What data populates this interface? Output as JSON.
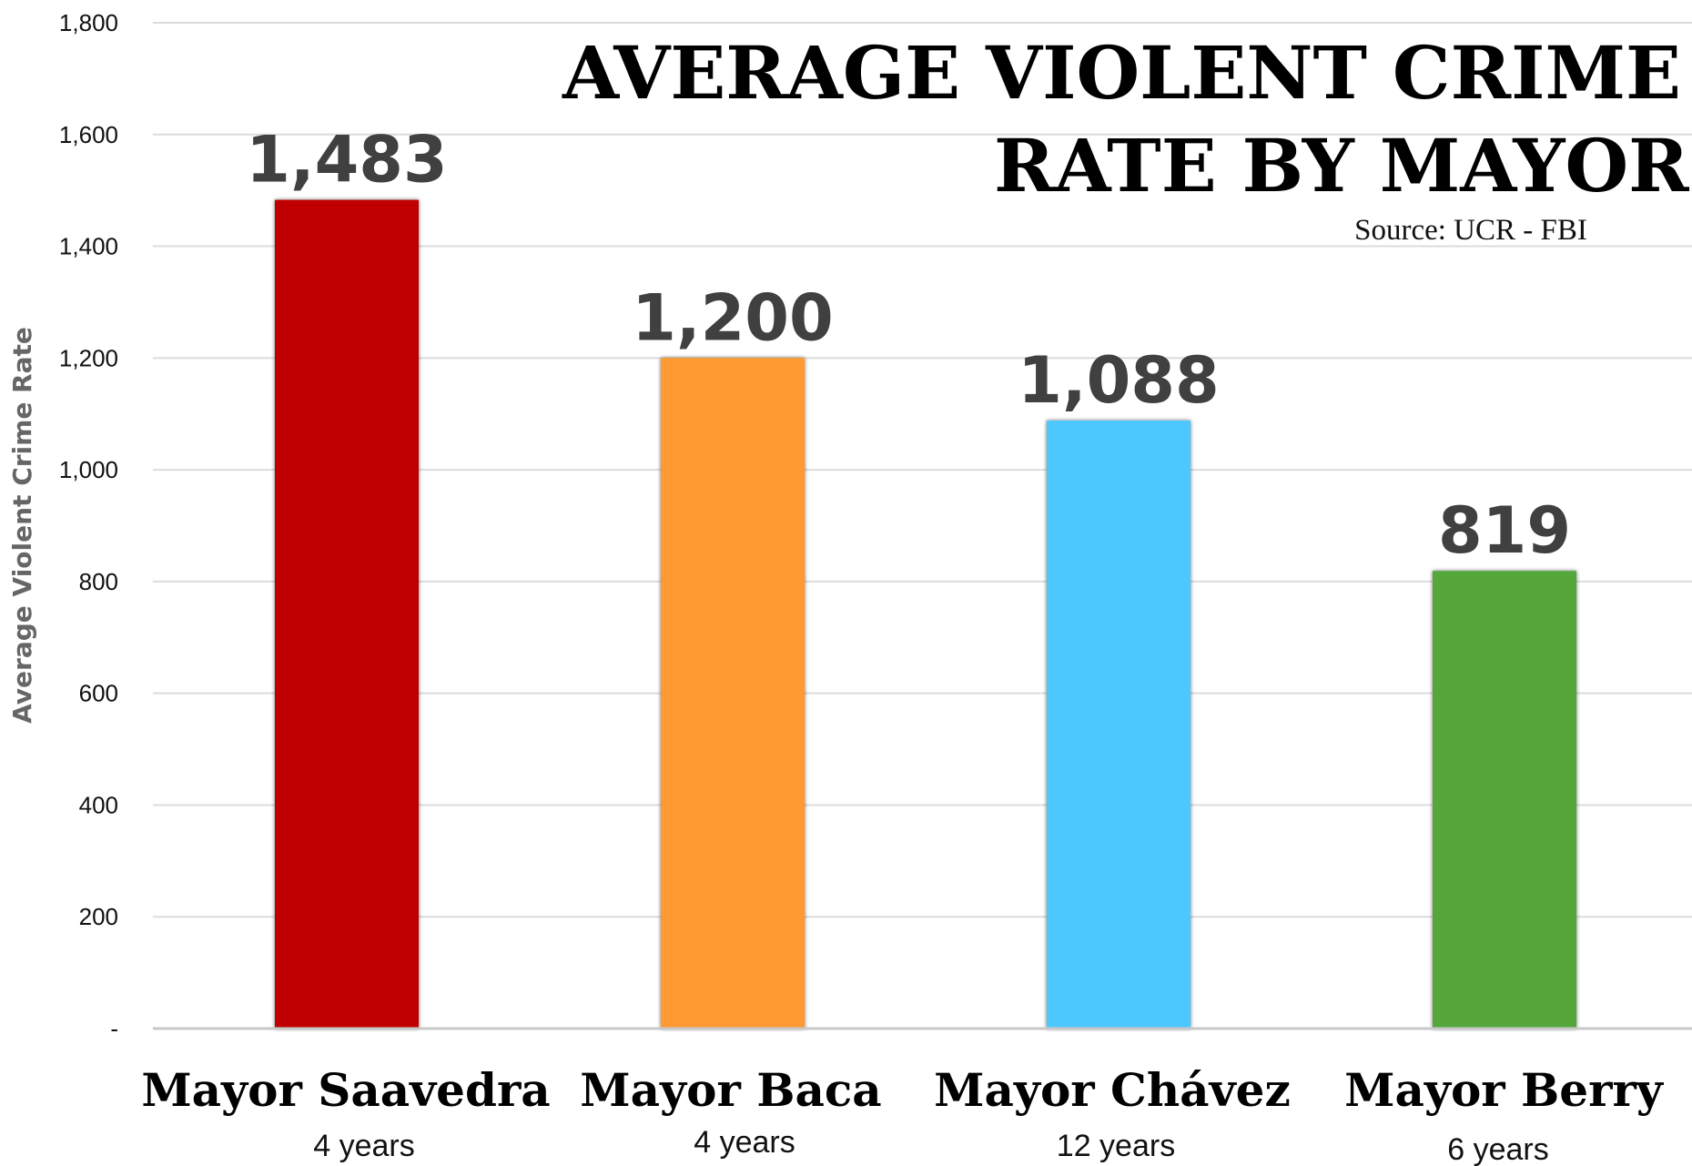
{
  "chart_data": {
    "type": "bar",
    "title_lines": [
      "AVERAGE VIOLENT CRIME",
      "RATE BY MAYOR"
    ],
    "source": "Source: UCR - FBI",
    "ylabel": "Average Violent Crime Rate",
    "xlabel": "",
    "ylim": [
      0,
      1800
    ],
    "yticks": [
      {
        "value": 0,
        "label": "-"
      },
      {
        "value": 200,
        "label": "200"
      },
      {
        "value": 400,
        "label": "400"
      },
      {
        "value": 600,
        "label": "600"
      },
      {
        "value": 800,
        "label": "800"
      },
      {
        "value": 1000,
        "label": "1,000"
      },
      {
        "value": 1200,
        "label": "1,200"
      },
      {
        "value": 1400,
        "label": "1,400"
      },
      {
        "value": 1600,
        "label": "1,600"
      },
      {
        "value": 1800,
        "label": "1,800"
      }
    ],
    "grid": true,
    "categories": [
      "Mayor Saavedra",
      "Mayor Baca",
      "Mayor Chávez",
      "Mayor Berry"
    ],
    "sublabels": [
      "4 years",
      "4 years",
      "12 years",
      "6 years"
    ],
    "values": [
      1483,
      1200,
      1088,
      819
    ],
    "value_labels": [
      "1,483",
      "1,200",
      "1,088",
      "819"
    ],
    "colors": [
      "#c00000",
      "#ff9933",
      "#4dc8ff",
      "#55a63a"
    ]
  }
}
